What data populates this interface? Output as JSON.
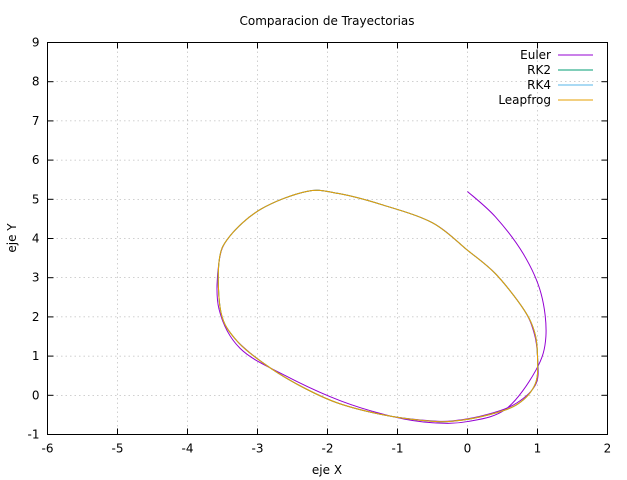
{
  "chart_data": {
    "type": "line",
    "title": "Comparacion de Trayectorias",
    "xlabel": "eje X",
    "ylabel": "eje Y",
    "xlim": [
      -6,
      2
    ],
    "ylim": [
      -1,
      9
    ],
    "xticks": [
      -6,
      -5,
      -4,
      -3,
      -2,
      -1,
      0,
      1,
      2
    ],
    "yticks": [
      -1,
      0,
      1,
      2,
      3,
      4,
      5,
      6,
      7,
      8,
      9
    ],
    "grid": true,
    "legend_position": "top-right",
    "series": [
      {
        "name": "Euler",
        "color": "#9400d3",
        "points": [
          [
            0,
            5.2
          ],
          [
            0.4,
            4.55
          ],
          [
            0.8,
            3.6
          ],
          [
            1.05,
            2.6
          ],
          [
            1.12,
            1.5
          ],
          [
            0.98,
            0.65
          ],
          [
            0.55,
            -0.35
          ],
          [
            0,
            -0.67
          ],
          [
            -0.5,
            -0.7
          ],
          [
            -1.05,
            -0.55
          ],
          [
            -1.8,
            -0.15
          ],
          [
            -2.6,
            0.5
          ],
          [
            -3.25,
            1.2
          ],
          [
            -3.55,
            2.2
          ],
          [
            -3.55,
            3.4
          ],
          [
            -3.4,
            4.05
          ],
          [
            -2.95,
            4.75
          ],
          [
            -2.3,
            5.2
          ],
          [
            -1.85,
            5.15
          ],
          [
            -1.2,
            4.85
          ],
          [
            -0.5,
            4.4
          ],
          [
            0,
            3.7
          ],
          [
            0.4,
            3.1
          ],
          [
            0.8,
            2.2
          ],
          [
            0.95,
            1.6
          ],
          [
            1,
            1
          ],
          [
            0.98,
            0.3
          ],
          [
            0.7,
            -0.2
          ],
          [
            0.3,
            -0.48
          ],
          [
            -0.2,
            -0.65
          ],
          [
            -0.6,
            -0.64
          ],
          [
            -1.2,
            -0.5
          ],
          [
            -1.85,
            -0.2
          ],
          [
            -2.4,
            0.25
          ],
          [
            -2.9,
            0.8
          ],
          [
            -3.3,
            1.4
          ],
          [
            -3.5,
            1.9
          ]
        ]
      },
      {
        "name": "RK2",
        "color": "#009e73",
        "points": [
          [
            0,
            3.7
          ],
          [
            0.4,
            3.1
          ],
          [
            0.8,
            2.2
          ],
          [
            0.96,
            1.6
          ],
          [
            1,
            1
          ],
          [
            0.97,
            0.3
          ],
          [
            0.72,
            -0.22
          ],
          [
            0.3,
            -0.5
          ],
          [
            -0.2,
            -0.66
          ],
          [
            -0.6,
            -0.65
          ],
          [
            -1.2,
            -0.5
          ],
          [
            -1.85,
            -0.2
          ],
          [
            -2.4,
            0.25
          ],
          [
            -2.9,
            0.8
          ],
          [
            -3.3,
            1.4
          ],
          [
            -3.52,
            2.1
          ],
          [
            -3.55,
            3.4
          ],
          [
            -3.4,
            4.05
          ],
          [
            -2.95,
            4.75
          ],
          [
            -2.3,
            5.2
          ],
          [
            -1.85,
            5.15
          ],
          [
            -1.2,
            4.85
          ],
          [
            -0.5,
            4.4
          ],
          [
            0,
            3.7
          ]
        ]
      },
      {
        "name": "RK4",
        "color": "#56b4e9",
        "points": [
          [
            0,
            3.7
          ],
          [
            0.4,
            3.1
          ],
          [
            0.8,
            2.2
          ],
          [
            0.96,
            1.6
          ],
          [
            1,
            1
          ],
          [
            0.97,
            0.3
          ],
          [
            0.72,
            -0.22
          ],
          [
            0.3,
            -0.5
          ],
          [
            -0.2,
            -0.66
          ],
          [
            -0.6,
            -0.65
          ],
          [
            -1.2,
            -0.5
          ],
          [
            -1.85,
            -0.2
          ],
          [
            -2.4,
            0.25
          ],
          [
            -2.9,
            0.8
          ],
          [
            -3.3,
            1.4
          ],
          [
            -3.52,
            2.1
          ],
          [
            -3.55,
            3.4
          ],
          [
            -3.4,
            4.05
          ],
          [
            -2.95,
            4.75
          ],
          [
            -2.3,
            5.2
          ],
          [
            -1.85,
            5.15
          ],
          [
            -1.2,
            4.85
          ],
          [
            -0.5,
            4.4
          ],
          [
            0,
            3.7
          ]
        ]
      },
      {
        "name": "Leapfrog",
        "color": "#e69f00",
        "points": [
          [
            0,
            3.7
          ],
          [
            0.4,
            3.1
          ],
          [
            0.8,
            2.2
          ],
          [
            0.96,
            1.6
          ],
          [
            1,
            1
          ],
          [
            0.97,
            0.3
          ],
          [
            0.72,
            -0.22
          ],
          [
            0.3,
            -0.5
          ],
          [
            -0.2,
            -0.66
          ],
          [
            -0.6,
            -0.65
          ],
          [
            -1.2,
            -0.5
          ],
          [
            -1.85,
            -0.2
          ],
          [
            -2.4,
            0.25
          ],
          [
            -2.9,
            0.8
          ],
          [
            -3.3,
            1.4
          ],
          [
            -3.52,
            2.1
          ],
          [
            -3.55,
            3.4
          ],
          [
            -3.4,
            4.05
          ],
          [
            -2.95,
            4.75
          ],
          [
            -2.3,
            5.2
          ],
          [
            -1.85,
            5.15
          ],
          [
            -1.2,
            4.85
          ],
          [
            -0.5,
            4.4
          ],
          [
            0,
            3.7
          ]
        ]
      }
    ]
  }
}
